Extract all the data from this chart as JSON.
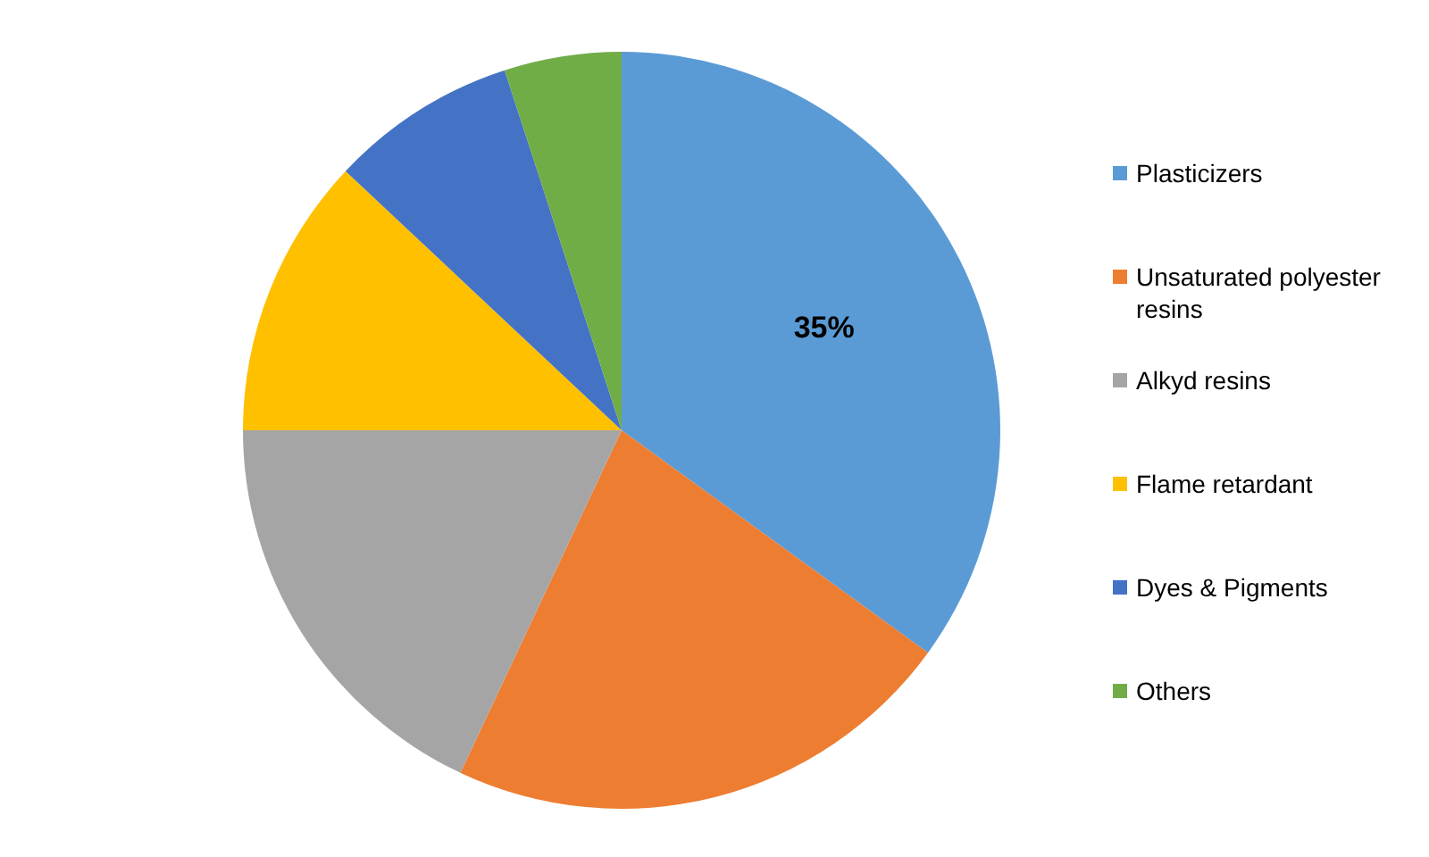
{
  "chart_data": {
    "type": "pie",
    "categories": [
      "Plasticizers",
      "Unsaturated polyester resins",
      "Alkyd resins",
      "Flame retardant",
      "Dyes & Pigments",
      "Others"
    ],
    "values": [
      35,
      22,
      18,
      12,
      8,
      5
    ],
    "colors": [
      "#5b9bd5",
      "#ed7d31",
      "#a5a5a5",
      "#ffc000",
      "#4472c4",
      "#70ad47"
    ],
    "value_labels": [
      "35%",
      null,
      null,
      null,
      null,
      null
    ],
    "legend": "right"
  }
}
